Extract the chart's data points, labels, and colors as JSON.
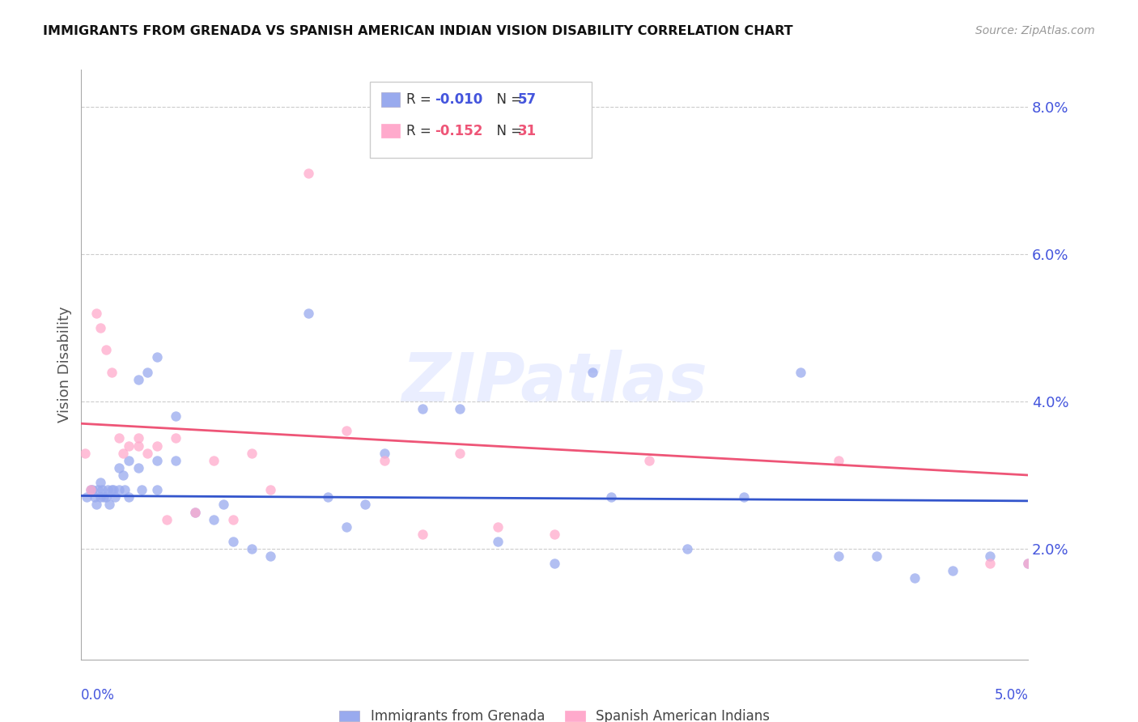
{
  "title": "IMMIGRANTS FROM GRENADA VS SPANISH AMERICAN INDIAN VISION DISABILITY CORRELATION CHART",
  "source": "Source: ZipAtlas.com",
  "ylabel": "Vision Disability",
  "y_ticks": [
    0.02,
    0.04,
    0.06,
    0.08
  ],
  "y_tick_labels": [
    "2.0%",
    "4.0%",
    "6.0%",
    "8.0%"
  ],
  "x_min": 0.0,
  "x_max": 0.05,
  "y_min": 0.005,
  "y_max": 0.085,
  "color_blue": "#99AAEE",
  "color_pink": "#FFAACC",
  "color_blue_line": "#3355CC",
  "color_pink_line": "#EE5577",
  "color_title": "#111111",
  "color_axis_blue": "#4455DD",
  "color_source": "#999999",
  "watermark_text": "ZIPatlas",
  "legend_label1": "Immigrants from Grenada",
  "legend_label2": "Spanish American Indians",
  "legend_r1_prefix": "R = ",
  "legend_r1_val": "-0.010",
  "legend_n1_prefix": "N = ",
  "legend_n1_val": "57",
  "legend_r2_prefix": "R = ",
  "legend_r2_val": "-0.152",
  "legend_n2_prefix": "N = ",
  "legend_n2_val": "31",
  "blue_x": [
    0.0003,
    0.0005,
    0.0006,
    0.0007,
    0.0008,
    0.0009,
    0.001,
    0.001,
    0.0011,
    0.0012,
    0.0013,
    0.0014,
    0.0015,
    0.0016,
    0.0017,
    0.0018,
    0.002,
    0.002,
    0.0022,
    0.0023,
    0.0025,
    0.0025,
    0.003,
    0.003,
    0.0032,
    0.0035,
    0.004,
    0.004,
    0.004,
    0.005,
    0.005,
    0.006,
    0.007,
    0.0075,
    0.008,
    0.009,
    0.01,
    0.012,
    0.013,
    0.014,
    0.015,
    0.016,
    0.018,
    0.02,
    0.022,
    0.025,
    0.027,
    0.028,
    0.032,
    0.035,
    0.038,
    0.04,
    0.042,
    0.044,
    0.046,
    0.048,
    0.05
  ],
  "blue_y": [
    0.027,
    0.028,
    0.028,
    0.027,
    0.026,
    0.028,
    0.027,
    0.029,
    0.028,
    0.027,
    0.027,
    0.028,
    0.026,
    0.028,
    0.028,
    0.027,
    0.028,
    0.031,
    0.03,
    0.028,
    0.027,
    0.032,
    0.031,
    0.043,
    0.028,
    0.044,
    0.028,
    0.032,
    0.046,
    0.032,
    0.038,
    0.025,
    0.024,
    0.026,
    0.021,
    0.02,
    0.019,
    0.052,
    0.027,
    0.023,
    0.026,
    0.033,
    0.039,
    0.039,
    0.021,
    0.018,
    0.044,
    0.027,
    0.02,
    0.027,
    0.044,
    0.019,
    0.019,
    0.016,
    0.017,
    0.019,
    0.018
  ],
  "pink_x": [
    0.0002,
    0.0005,
    0.0008,
    0.001,
    0.0013,
    0.0016,
    0.002,
    0.0022,
    0.0025,
    0.003,
    0.003,
    0.0035,
    0.004,
    0.0045,
    0.005,
    0.006,
    0.007,
    0.008,
    0.009,
    0.01,
    0.012,
    0.014,
    0.016,
    0.018,
    0.02,
    0.022,
    0.025,
    0.03,
    0.04,
    0.048,
    0.05
  ],
  "pink_y": [
    0.033,
    0.028,
    0.052,
    0.05,
    0.047,
    0.044,
    0.035,
    0.033,
    0.034,
    0.035,
    0.034,
    0.033,
    0.034,
    0.024,
    0.035,
    0.025,
    0.032,
    0.024,
    0.033,
    0.028,
    0.071,
    0.036,
    0.032,
    0.022,
    0.033,
    0.023,
    0.022,
    0.032,
    0.032,
    0.018,
    0.018
  ],
  "blue_trend_x": [
    0.0,
    0.05
  ],
  "blue_trend_y": [
    0.0272,
    0.0265
  ],
  "pink_trend_x": [
    0.0,
    0.05
  ],
  "pink_trend_y": [
    0.037,
    0.03
  ]
}
